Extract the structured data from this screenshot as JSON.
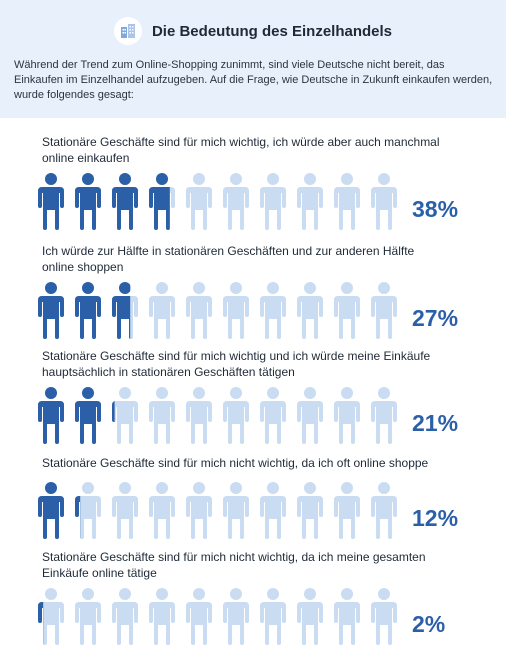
{
  "header": {
    "title": "Die Bedeutung des Einzelhandels",
    "intro": "Während der Trend zum Online-Shopping zunimmt, sind viele Deutsche nicht bereit, das Einkaufen im Einzelhandel aufzugeben. Auf die Frage, wie Deutsche in Zukunft einkaufen werden, wurde folgendes gesagt:",
    "icon": "shop-building-icon"
  },
  "colors": {
    "header_bg": "#e8f0fb",
    "filled": "#2b5fa8",
    "empty": "#c9dcf2",
    "percent": "#2b5fa8"
  },
  "chart_data": {
    "type": "pictograph",
    "icons_per_row": 10,
    "unit": "%",
    "rows": [
      {
        "label": "Stationäre Geschäfte sind für mich wichtig, ich würde aber auch manchmal online einkaufen",
        "value": 38,
        "display": "38%"
      },
      {
        "label": "Ich würde zur Hälfte in stationären Geschäften und zur anderen Hälfte online shoppen",
        "value": 27,
        "display": "27%"
      },
      {
        "label": "Stationäre Geschäfte sind für mich wichtig und ich würde meine Einkäufe hauptsächlich in stationären Geschäften tätigen",
        "value": 21,
        "display": "21%"
      },
      {
        "label": "Stationäre Geschäfte sind für mich nicht wichtig, da ich oft online shoppe",
        "value": 12,
        "display": "12%"
      },
      {
        "label": "Stationäre Geschäfte sind für mich nicht wichtig, da ich meine gesamten Einkäufe online tätige",
        "value": 2,
        "display": "2%"
      }
    ]
  }
}
